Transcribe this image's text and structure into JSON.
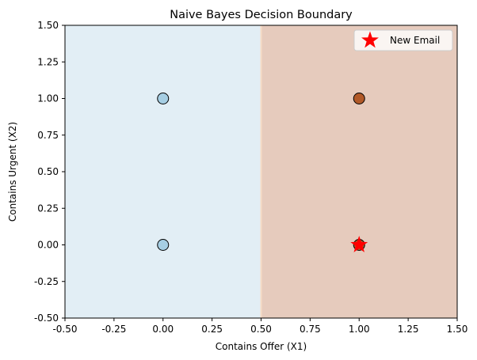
{
  "chart_data": {
    "type": "scatter",
    "title": "Naive Bayes Decision Boundary",
    "xlabel": "Contains Offer (X1)",
    "ylabel": "Contains Urgent (X2)",
    "xlim": [
      -0.5,
      1.5
    ],
    "ylim": [
      -0.5,
      1.5
    ],
    "xticks": [
      "-0.50",
      "-0.25",
      "0.00",
      "0.25",
      "0.50",
      "0.75",
      "1.00",
      "1.25",
      "1.50"
    ],
    "yticks": [
      "-0.50",
      "-0.25",
      "0.00",
      "0.25",
      "0.50",
      "0.75",
      "1.00",
      "1.25",
      "1.50"
    ],
    "grid": false,
    "decision_boundary": {
      "x": 0.5,
      "left_region_color": "#e2eef5",
      "right_region_color": "#e6cbbd",
      "boundary_color": "#f7dcc6"
    },
    "points": [
      {
        "x": 0,
        "y": 0,
        "class": 0,
        "color": "#a6cee3"
      },
      {
        "x": 0,
        "y": 1,
        "class": 0,
        "color": "#a6cee3"
      },
      {
        "x": 1,
        "y": 0,
        "class": 1,
        "color": "#b15928"
      },
      {
        "x": 1,
        "y": 1,
        "class": 1,
        "color": "#b15928"
      }
    ],
    "new_point": {
      "x": 1,
      "y": 0,
      "label": "New Email",
      "marker": "star",
      "color": "#ff0000"
    },
    "legend": {
      "position": "top-right",
      "entries": [
        "New Email"
      ]
    }
  }
}
